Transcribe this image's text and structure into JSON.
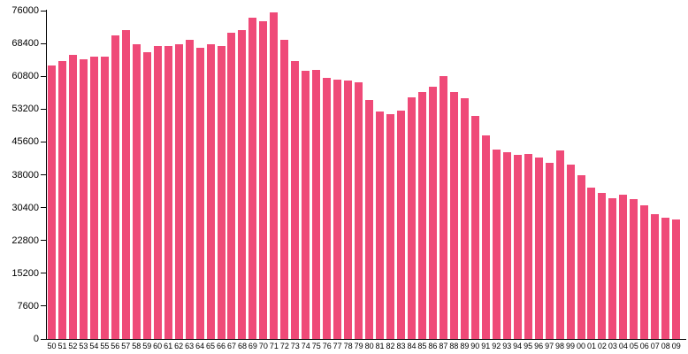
{
  "chart_data": {
    "type": "bar",
    "title": "",
    "xlabel": "",
    "ylabel": "",
    "bar_color": "#ef4a78",
    "axis_color": "#000000",
    "ylim": [
      0,
      76000
    ],
    "grid": false,
    "legend": "none",
    "y_tick_values": [
      0,
      7600,
      15200,
      22800,
      30400,
      38000,
      45600,
      53200,
      60800,
      68400,
      76000
    ],
    "y_tick_labels": [
      "0",
      "7600",
      "15200",
      "22800",
      "30400",
      "38000",
      "45600",
      "53200",
      "60800",
      "68400",
      "76000"
    ],
    "categories": [
      "50",
      "51",
      "52",
      "53",
      "54",
      "55",
      "56",
      "57",
      "58",
      "59",
      "60",
      "61",
      "62",
      "63",
      "64",
      "65",
      "66",
      "67",
      "68",
      "69",
      "70",
      "71",
      "72",
      "73",
      "74",
      "75",
      "76",
      "77",
      "78",
      "79",
      "80",
      "81",
      "82",
      "83",
      "84",
      "85",
      "86",
      "87",
      "88",
      "89",
      "90",
      "91",
      "92",
      "93",
      "94",
      "95",
      "96",
      "97",
      "98",
      "99",
      "00",
      "01",
      "02",
      "03",
      "04",
      "05",
      "06",
      "07",
      "08",
      "09"
    ],
    "values": [
      63200,
      64300,
      65800,
      64700,
      65300,
      65300,
      70200,
      71500,
      68300,
      66300,
      67800,
      67800,
      68300,
      69300,
      67300,
      68300,
      67800,
      70800,
      71500,
      74400,
      73500,
      75500,
      69300,
      64300,
      62000,
      62200,
      60500,
      60000,
      59800,
      59400,
      55400,
      52600,
      52000,
      52800,
      56000,
      57100,
      58300,
      60900,
      57200,
      55700,
      51600,
      47100,
      43900,
      43200,
      42700,
      42800,
      41900,
      40700,
      43700,
      40300,
      37800,
      35000,
      33700,
      32500,
      33300,
      32300,
      31000,
      28800,
      28100,
      27700
    ]
  }
}
